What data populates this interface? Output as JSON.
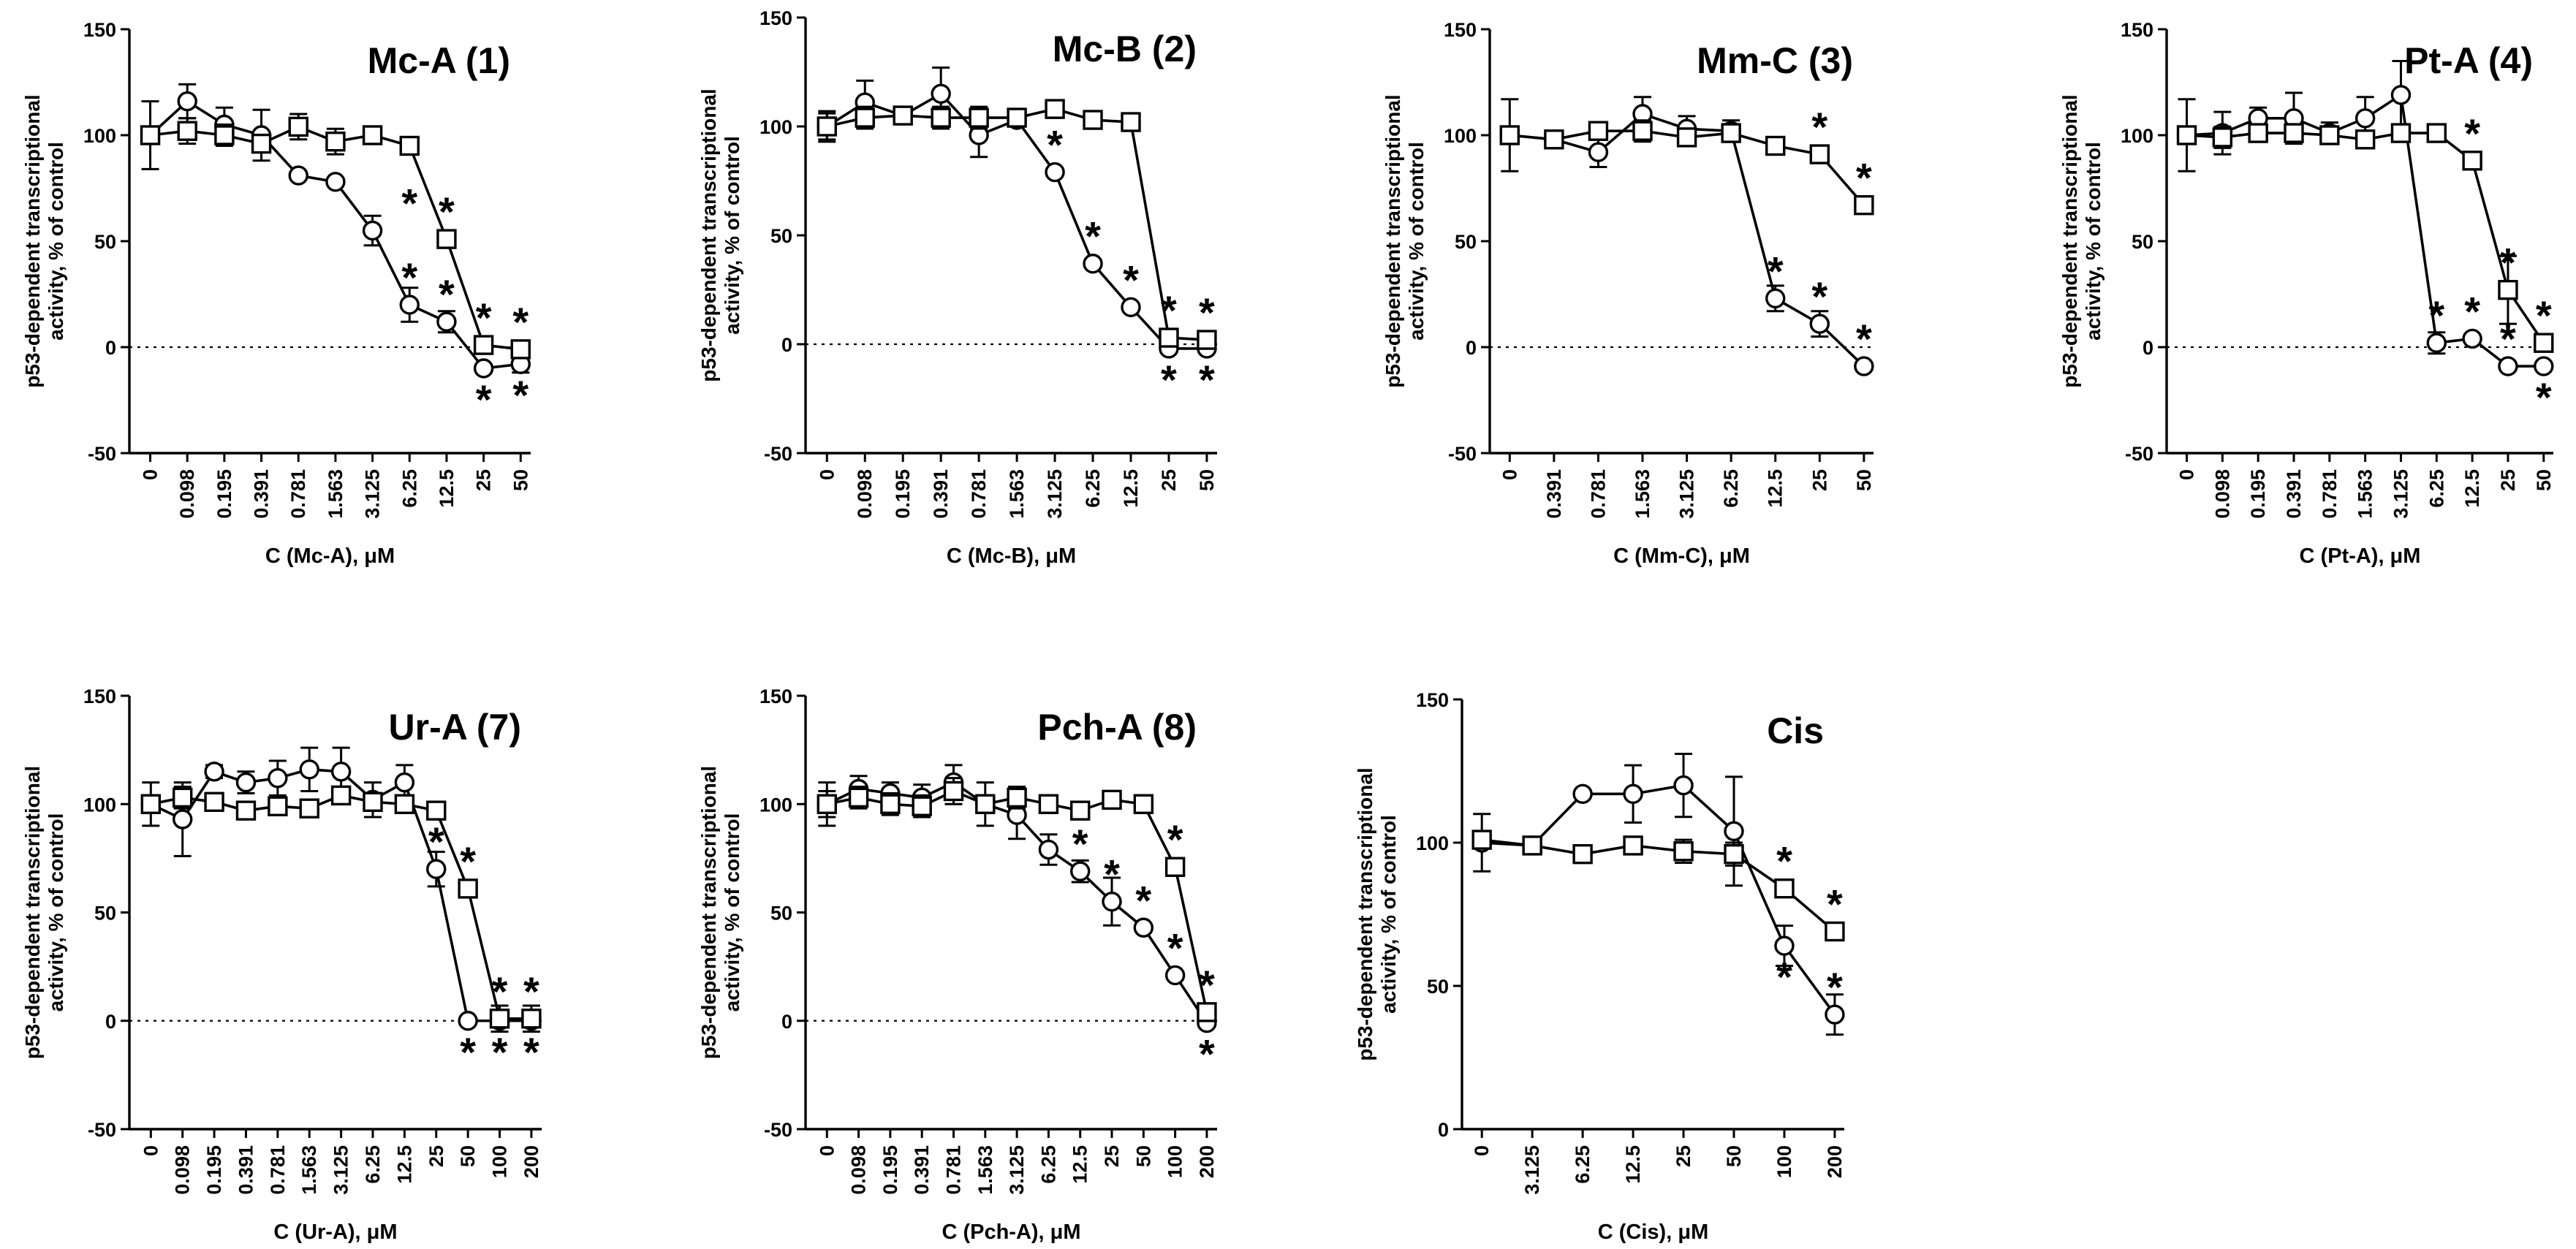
{
  "chart_data": [
    {
      "type": "line",
      "title": "Mc-A (1)",
      "xlabel": "C (Mc-A), μM",
      "ylabel": [
        "p53-dependent transcriptional",
        "activity, % of control"
      ],
      "ylim": [
        -50,
        150
      ],
      "yticks": [
        -50,
        0,
        50,
        100,
        150
      ],
      "categories": [
        "0",
        "0.098",
        "0.195",
        "0.391",
        "0.781",
        "1.563",
        "3.125",
        "6.25",
        "12.5",
        "25",
        "50"
      ],
      "series": [
        {
          "marker": "circle",
          "values": [
            100,
            116,
            105,
            100,
            81,
            78,
            55,
            20,
            12,
            -10,
            -8
          ],
          "errors": [
            16,
            8,
            8,
            12,
            0,
            0,
            7,
            8,
            5,
            0,
            4
          ]
        },
        {
          "marker": "square",
          "values": [
            100,
            102,
            100,
            96,
            104,
            97,
            100,
            95,
            51,
            1,
            -1
          ],
          "errors": [
            0,
            6,
            5,
            4,
            6,
            6,
            0,
            0,
            0,
            0,
            0
          ]
        }
      ],
      "significance": [
        {
          "x": "6.25",
          "y": 20,
          "pos": "above"
        },
        {
          "x": "6.25",
          "y": 55,
          "pos": "above"
        },
        {
          "x": "12.5",
          "y": 12,
          "pos": "above"
        },
        {
          "x": "12.5",
          "y": 51,
          "pos": "above"
        },
        {
          "x": "25",
          "y": 1,
          "pos": "above"
        },
        {
          "x": "25",
          "y": -10,
          "pos": "below"
        },
        {
          "x": "50",
          "y": -1,
          "pos": "above"
        },
        {
          "x": "50",
          "y": -8,
          "pos": "below"
        }
      ]
    },
    {
      "type": "line",
      "title": "Mc-B (2)",
      "xlabel": "C (Mc-B), μM",
      "ylabel": [
        "p53-dependent transcriptional",
        "activity, % of control"
      ],
      "ylim": [
        -50,
        150
      ],
      "yticks": [
        -50,
        0,
        50,
        100,
        150
      ],
      "categories": [
        "0",
        "0.098",
        "0.195",
        "0.391",
        "0.781",
        "1.563",
        "3.125",
        "6.25",
        "12.5",
        "25",
        "50"
      ],
      "series": [
        {
          "marker": "circle",
          "values": [
            100,
            111,
            105,
            115,
            96,
            103,
            79,
            37,
            17,
            -2,
            -2
          ],
          "errors": [
            6,
            10,
            3,
            12,
            10,
            3,
            0,
            0,
            0,
            0,
            0
          ]
        },
        {
          "marker": "square",
          "values": [
            100,
            104,
            105,
            104,
            104,
            104,
            108,
            103,
            102,
            3,
            2
          ],
          "errors": [
            7,
            5,
            3,
            5,
            5,
            3,
            0,
            0,
            0,
            0,
            0
          ]
        }
      ],
      "significance": [
        {
          "x": "3.125",
          "y": 79,
          "pos": "above"
        },
        {
          "x": "6.25",
          "y": 37,
          "pos": "above"
        },
        {
          "x": "12.5",
          "y": 17,
          "pos": "above"
        },
        {
          "x": "25",
          "y": 3,
          "pos": "above"
        },
        {
          "x": "25",
          "y": -2,
          "pos": "below"
        },
        {
          "x": "50",
          "y": 2,
          "pos": "above"
        },
        {
          "x": "50",
          "y": -2,
          "pos": "below"
        }
      ]
    },
    {
      "type": "line",
      "title": "Mm-C (3)",
      "xlabel": "C (Mm-C), μM",
      "ylabel": [
        "p53-dependent transcriptional",
        "activity, % of control"
      ],
      "ylim": [
        -50,
        150
      ],
      "yticks": [
        -50,
        0,
        50,
        100,
        150
      ],
      "categories": [
        "0",
        "0.391",
        "0.781",
        "1.563",
        "3.125",
        "6.25",
        "12.5",
        "25",
        "50"
      ],
      "series": [
        {
          "marker": "circle",
          "values": [
            100,
            98,
            92,
            110,
            103,
            102,
            23,
            11,
            -9
          ],
          "errors": [
            17,
            4,
            7,
            8,
            6,
            5,
            6,
            6,
            0
          ]
        },
        {
          "marker": "square",
          "values": [
            100,
            98,
            102,
            102,
            99,
            101,
            95,
            91,
            67
          ],
          "errors": [
            0,
            4,
            4,
            5,
            4,
            4,
            0,
            0,
            0
          ]
        }
      ],
      "significance": [
        {
          "x": "12.5",
          "y": 23,
          "pos": "above"
        },
        {
          "x": "25",
          "y": 11,
          "pos": "above"
        },
        {
          "x": "25",
          "y": 91,
          "pos": "above"
        },
        {
          "x": "50",
          "y": 67,
          "pos": "above"
        },
        {
          "x": "50",
          "y": -9,
          "pos": "above"
        }
      ]
    },
    {
      "type": "line",
      "title": "Pt-A (4)",
      "xlabel": "C (Pt-A), μM",
      "ylabel": [
        "p53-dependent transcriptional",
        "activity, % of control"
      ],
      "ylim": [
        -50,
        150
      ],
      "yticks": [
        -50,
        0,
        50,
        100,
        150
      ],
      "categories": [
        "0",
        "0.098",
        "0.195",
        "0.391",
        "0.781",
        "1.563",
        "3.125",
        "6.25",
        "12.5",
        "25",
        "50"
      ],
      "series": [
        {
          "marker": "circle",
          "values": [
            100,
            101,
            108,
            108,
            101,
            108,
            119,
            2,
            4,
            -9,
            -9
          ],
          "errors": [
            17,
            10,
            5,
            12,
            5,
            10,
            16,
            5,
            0,
            0,
            0
          ]
        },
        {
          "marker": "square",
          "values": [
            100,
            99,
            101,
            101,
            100,
            98,
            101,
            101,
            88,
            27,
            2
          ],
          "errors": [
            0,
            5,
            4,
            4,
            4,
            4,
            0,
            0,
            0,
            16,
            0
          ]
        }
      ],
      "significance": [
        {
          "x": "6.25",
          "y": 2,
          "pos": "above"
        },
        {
          "x": "12.5",
          "y": 4,
          "pos": "above"
        },
        {
          "x": "12.5",
          "y": 88,
          "pos": "above"
        },
        {
          "x": "25",
          "y": 27,
          "pos": "above"
        },
        {
          "x": "25",
          "y": -9,
          "pos": "above"
        },
        {
          "x": "50",
          "y": 2,
          "pos": "above"
        },
        {
          "x": "50",
          "y": -9,
          "pos": "below"
        }
      ]
    },
    {
      "type": "line",
      "title": "Ur-A (7)",
      "xlabel": "C (Ur-A), μM",
      "ylabel": [
        "p53-dependent transcriptional",
        "activity, % of control"
      ],
      "ylim": [
        -50,
        150
      ],
      "yticks": [
        -50,
        0,
        50,
        100,
        150
      ],
      "categories": [
        "0",
        "0.098",
        "0.195",
        "0.391",
        "0.781",
        "1.563",
        "3.125",
        "6.25",
        "12.5",
        "25",
        "50",
        "100",
        "200"
      ],
      "series": [
        {
          "marker": "circle",
          "values": [
            100,
            93,
            115,
            110,
            112,
            116,
            115,
            102,
            110,
            70,
            0,
            0,
            0
          ],
          "errors": [
            10,
            17,
            3,
            5,
            8,
            10,
            11,
            8,
            8,
            8,
            0,
            0,
            0
          ]
        },
        {
          "marker": "square",
          "values": [
            100,
            103,
            101,
            97,
            99,
            98,
            104,
            101,
            100,
            97,
            61,
            1,
            1
          ],
          "errors": [
            0,
            5,
            0,
            3,
            3,
            3,
            4,
            4,
            0,
            0,
            0,
            6,
            6
          ]
        }
      ],
      "significance": [
        {
          "x": "25",
          "y": 70,
          "pos": "above"
        },
        {
          "x": "50",
          "y": 61,
          "pos": "above"
        },
        {
          "x": "50",
          "y": 0,
          "pos": "below"
        },
        {
          "x": "100",
          "y": 1,
          "pos": "above"
        },
        {
          "x": "100",
          "y": 0,
          "pos": "below"
        },
        {
          "x": "200",
          "y": 1,
          "pos": "above"
        },
        {
          "x": "200",
          "y": 0,
          "pos": "below"
        }
      ]
    },
    {
      "type": "line",
      "title": "Pch-A (8)",
      "xlabel": "C (Pch-A), μM",
      "ylabel": [
        "p53-dependent transcriptional",
        "activity, % of control"
      ],
      "ylim": [
        -50,
        150
      ],
      "yticks": [
        -50,
        0,
        50,
        100,
        150
      ],
      "categories": [
        "0",
        "0.098",
        "0.195",
        "0.391",
        "0.781",
        "1.563",
        "3.125",
        "6.25",
        "12.5",
        "25",
        "50",
        "100",
        "200"
      ],
      "series": [
        {
          "marker": "circle",
          "values": [
            100,
            107,
            105,
            103,
            110,
            100,
            95,
            79,
            69,
            55,
            43,
            21,
            -1
          ],
          "errors": [
            10,
            6,
            5,
            6,
            8,
            10,
            11,
            7,
            5,
            11,
            0,
            0,
            0
          ]
        },
        {
          "marker": "square",
          "values": [
            100,
            103,
            100,
            99,
            106,
            100,
            103,
            100,
            97,
            102,
            100,
            71,
            4
          ],
          "errors": [
            6,
            5,
            5,
            5,
            6,
            4,
            5,
            0,
            0,
            0,
            0,
            0,
            0
          ]
        }
      ],
      "significance": [
        {
          "x": "12.5",
          "y": 69,
          "pos": "above"
        },
        {
          "x": "25",
          "y": 55,
          "pos": "above"
        },
        {
          "x": "50",
          "y": 43,
          "pos": "above"
        },
        {
          "x": "100",
          "y": 21,
          "pos": "above"
        },
        {
          "x": "100",
          "y": 71,
          "pos": "above"
        },
        {
          "x": "200",
          "y": 4,
          "pos": "above"
        },
        {
          "x": "200",
          "y": -1,
          "pos": "below"
        }
      ]
    },
    {
      "type": "line",
      "title": "Cis",
      "xlabel": "C (Cis), μM",
      "ylabel": [
        "p53-dependent transcriptional",
        "activity, % of control"
      ],
      "ylim": [
        0,
        150
      ],
      "yticks": [
        0,
        50,
        100,
        150
      ],
      "categories": [
        "0",
        "3.125",
        "6.25",
        "12.5",
        "25",
        "50",
        "100",
        "200"
      ],
      "series": [
        {
          "marker": "circle",
          "values": [
            100,
            99,
            117,
            117,
            120,
            104,
            64,
            40
          ],
          "errors": [
            10,
            0,
            0,
            10,
            11,
            19,
            7,
            7
          ]
        },
        {
          "marker": "square",
          "values": [
            101,
            99,
            96,
            99,
            97,
            96,
            84,
            69
          ],
          "errors": [
            0,
            0,
            3,
            0,
            4,
            4,
            0,
            0
          ]
        }
      ],
      "significance": [
        {
          "x": "100",
          "y": 84,
          "pos": "above"
        },
        {
          "x": "100",
          "y": 64,
          "pos": "below"
        },
        {
          "x": "200",
          "y": 69,
          "pos": "above"
        },
        {
          "x": "200",
          "y": 40,
          "pos": "above"
        }
      ]
    }
  ]
}
